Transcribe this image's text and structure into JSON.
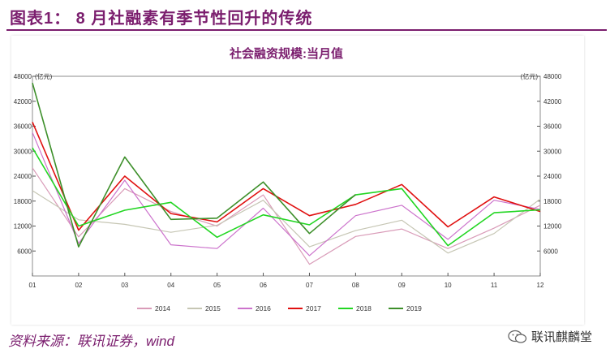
{
  "header": {
    "title": "图表1：   8 月社融素有季节性回升的传统"
  },
  "footer": {
    "source": "资料来源：联讯证券，wind",
    "watermark": "联讯麒麟堂"
  },
  "colors": {
    "accent": "#7b1e6e"
  },
  "chart_data": {
    "type": "line",
    "title": "社会融资规模:当月值",
    "ylabel_left": "(亿元)",
    "ylabel_right": "(亿元)",
    "categories": [
      "01",
      "02",
      "03",
      "04",
      "05",
      "06",
      "07",
      "08",
      "09",
      "10",
      "11",
      "12"
    ],
    "yticks": [
      "6000",
      "12000",
      "18000",
      "24000",
      "30000",
      "36000",
      "42000",
      "48000"
    ],
    "ylim": [
      0,
      48000
    ],
    "grid": false,
    "legend_position": "bottom",
    "series": [
      {
        "name": "2014",
        "color": "#d99bb8",
        "width": 1.2,
        "values": [
          26000,
          9400,
          21000,
          15500,
          12000,
          19500,
          2800,
          9500,
          11300,
          6600,
          11500,
          17000
        ]
      },
      {
        "name": "2015",
        "color": "#c6c6b4",
        "width": 1.2,
        "values": [
          20500,
          13500,
          12400,
          10500,
          12200,
          18200,
          7000,
          10900,
          13400,
          5500,
          10200,
          18500
        ]
      },
      {
        "name": "2016",
        "color": "#cc73cc",
        "width": 1.2,
        "values": [
          34500,
          7800,
          23000,
          7500,
          6600,
          16300,
          4900,
          14500,
          17000,
          8800,
          18200,
          16000
        ]
      },
      {
        "name": "2017",
        "color": "#e01010",
        "width": 1.6,
        "values": [
          37000,
          11000,
          24000,
          15000,
          13000,
          21000,
          14500,
          17200,
          22000,
          11800,
          19000,
          15500
        ]
      },
      {
        "name": "2018",
        "color": "#22d622",
        "width": 1.6,
        "values": [
          30800,
          12000,
          15800,
          17700,
          9300,
          14700,
          12300,
          19500,
          21000,
          7300,
          15200,
          15900
        ]
      },
      {
        "name": "2019",
        "color": "#3d8f2a",
        "width": 1.6,
        "values": [
          46400,
          7000,
          28600,
          13600,
          13900,
          22600,
          10200,
          19600,
          null,
          null,
          null,
          null
        ]
      }
    ]
  }
}
